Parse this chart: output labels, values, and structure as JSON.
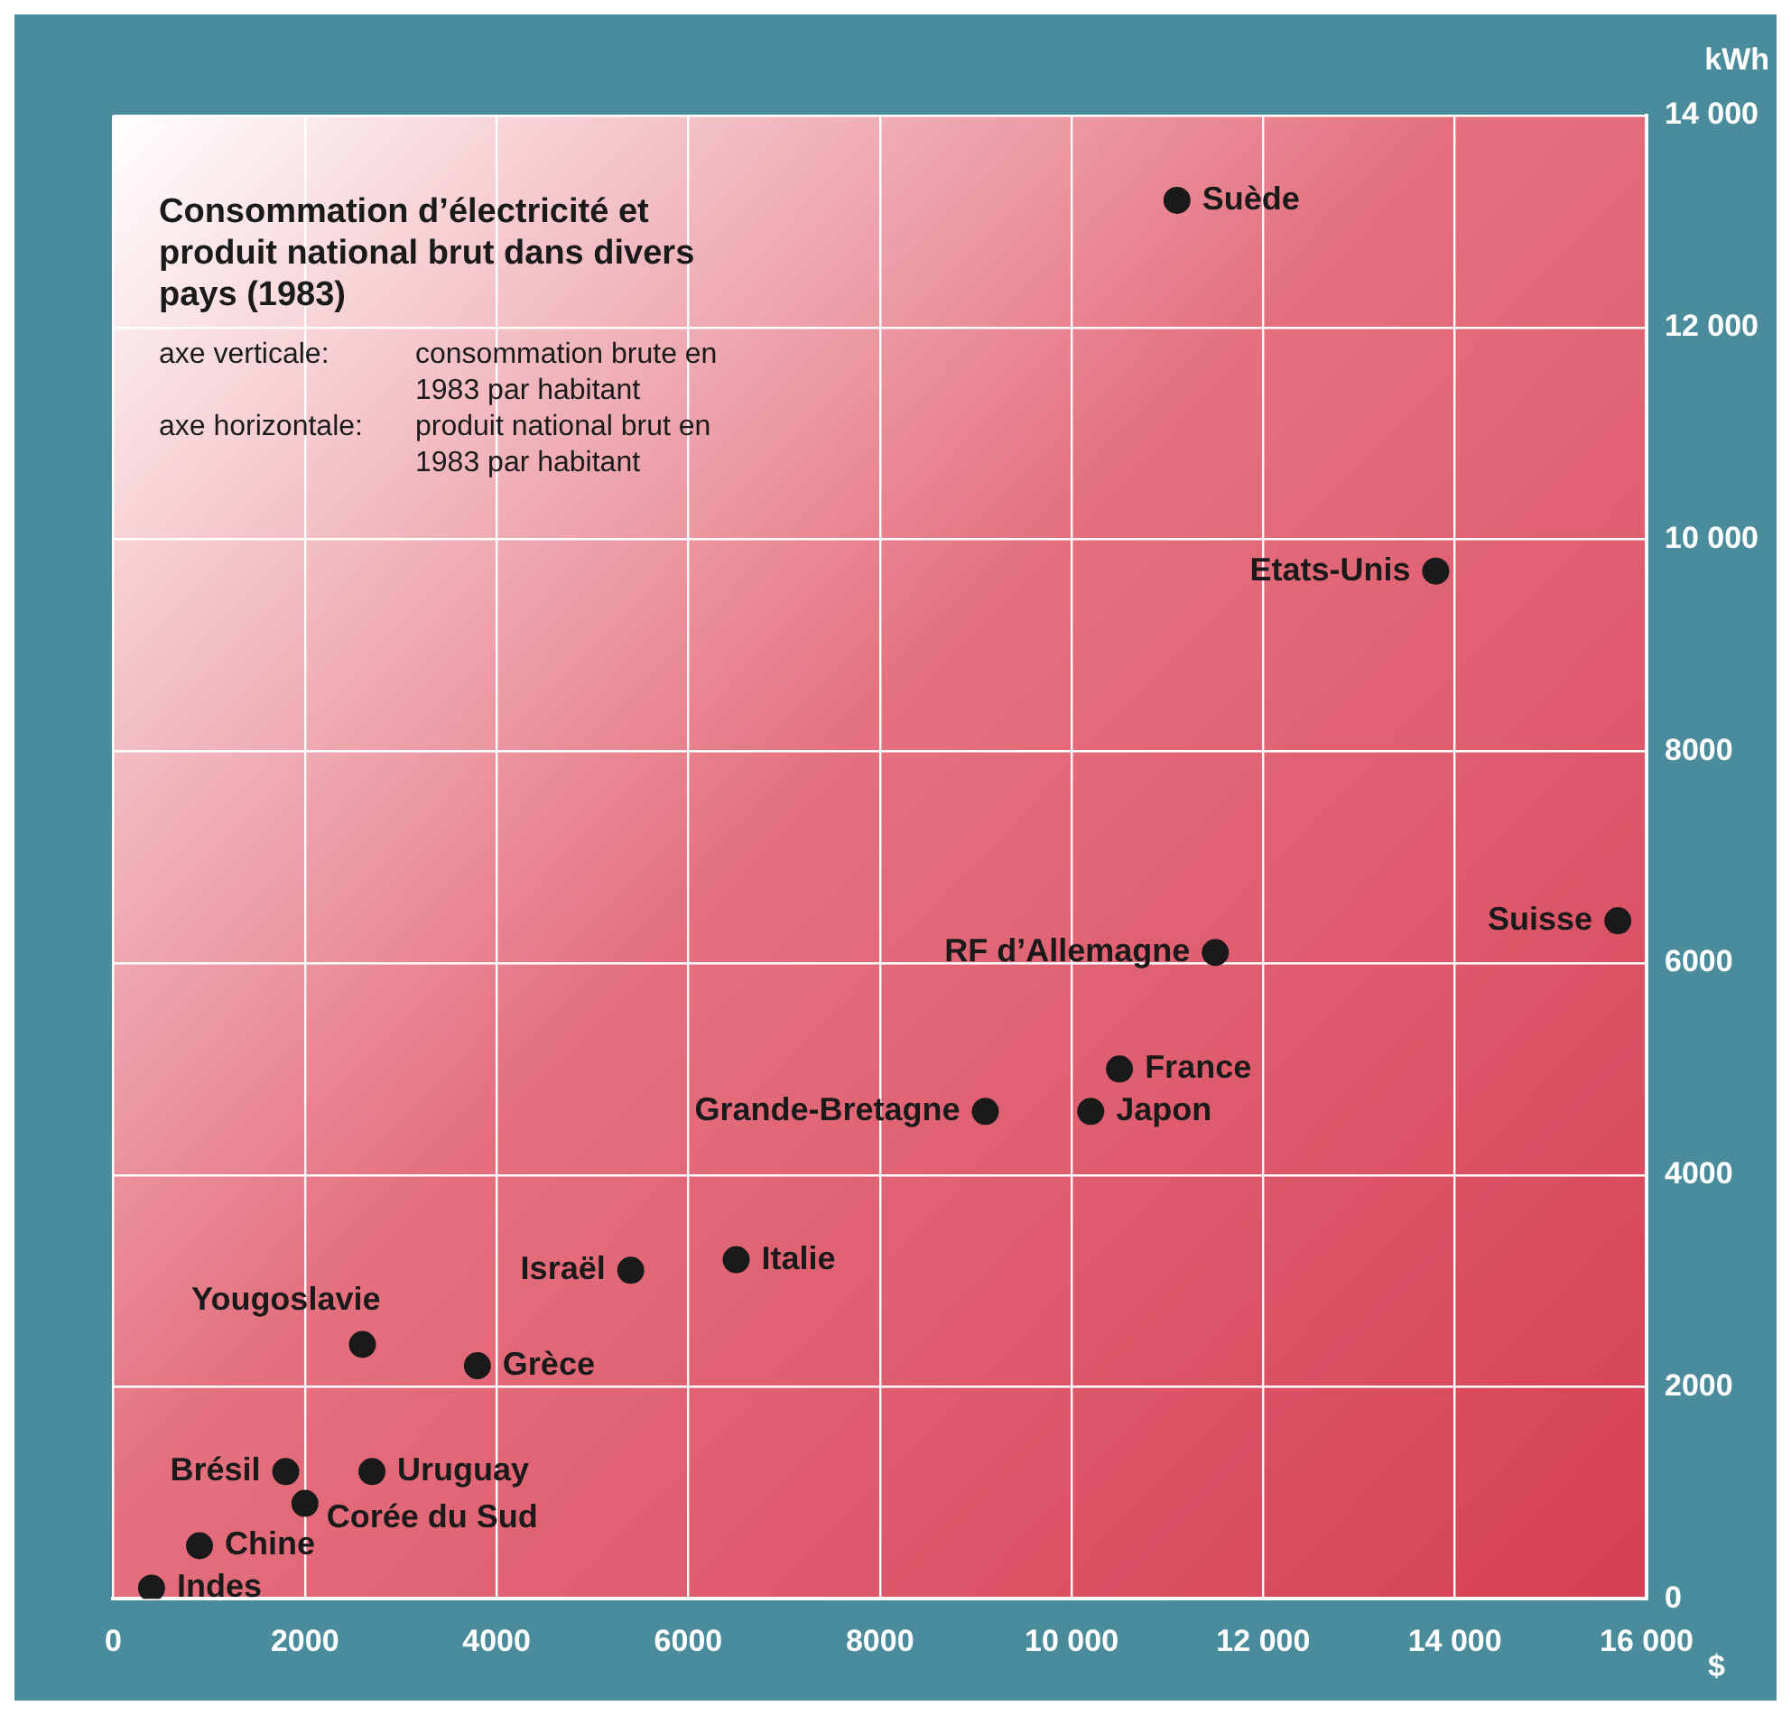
{
  "chart_data": {
    "type": "scatter",
    "title": "Consommation d’électricité et produit national brut dans divers pays (1983)",
    "annotations": [
      "axe verticale:\tconsommation brute en 1983 par habitant",
      "axe horizontale:\tproduit national brut en 1983 par habitant"
    ],
    "xlabel": "$",
    "ylabel": "kWh",
    "xlim": [
      0,
      16000
    ],
    "ylim": [
      0,
      14000
    ],
    "xticks": [
      0,
      2000,
      4000,
      6000,
      8000,
      {
        "value": 10000,
        "label": "10 000"
      },
      {
        "value": 12000,
        "label": "12 000"
      },
      {
        "value": 14000,
        "label": "14 000"
      },
      {
        "value": 16000,
        "label": "16 000"
      }
    ],
    "yticks": [
      0,
      2000,
      4000,
      6000,
      8000,
      {
        "value": 10000,
        "label": "10 000"
      },
      {
        "value": 12000,
        "label": "12 000"
      },
      {
        "value": 14000,
        "label": "14 000"
      }
    ],
    "grid": true,
    "legend": false,
    "marker": "circle",
    "series": [
      {
        "name": "Suède",
        "color": "#1a1a1a",
        "x": [
          11100
        ],
        "values": [
          13200
        ]
      },
      {
        "name": "Etats-Unis",
        "color": "#1a1a1a",
        "x": [
          13800
        ],
        "values": [
          9700
        ]
      },
      {
        "name": "Suisse",
        "color": "#1a1a1a",
        "x": [
          15700
        ],
        "values": [
          6400
        ]
      },
      {
        "name": "RF d’Allemagne",
        "color": "#1a1a1a",
        "x": [
          11500
        ],
        "values": [
          6100
        ]
      },
      {
        "name": "France",
        "color": "#1a1a1a",
        "x": [
          10500
        ],
        "values": [
          5000
        ]
      },
      {
        "name": "Japon",
        "color": "#1a1a1a",
        "x": [
          10200
        ],
        "values": [
          4600
        ]
      },
      {
        "name": "Grande-Bretagne",
        "color": "#1a1a1a",
        "x": [
          9100
        ],
        "values": [
          4600
        ]
      },
      {
        "name": "Italie",
        "color": "#1a1a1a",
        "x": [
          6500
        ],
        "values": [
          3200
        ]
      },
      {
        "name": "Israël",
        "color": "#1a1a1a",
        "x": [
          5400
        ],
        "values": [
          3100
        ]
      },
      {
        "name": "Yougoslavie",
        "color": "#1a1a1a",
        "x": [
          2600
        ],
        "values": [
          2400
        ]
      },
      {
        "name": "Grèce",
        "color": "#1a1a1a",
        "x": [
          3800
        ],
        "values": [
          2200
        ]
      },
      {
        "name": "Uruguay",
        "color": "#1a1a1a",
        "x": [
          2700
        ],
        "values": [
          1200
        ]
      },
      {
        "name": "Brésil",
        "color": "#1a1a1a",
        "x": [
          1800
        ],
        "values": [
          1200
        ]
      },
      {
        "name": "Corée du Sud",
        "color": "#1a1a1a",
        "x": [
          2000
        ],
        "values": [
          900
        ]
      },
      {
        "name": "Chine",
        "color": "#1a1a1a",
        "x": [
          900
        ],
        "values": [
          500
        ]
      },
      {
        "name": "Indes",
        "color": "#1a1a1a",
        "x": [
          400
        ],
        "values": [
          100
        ]
      }
    ]
  }
}
